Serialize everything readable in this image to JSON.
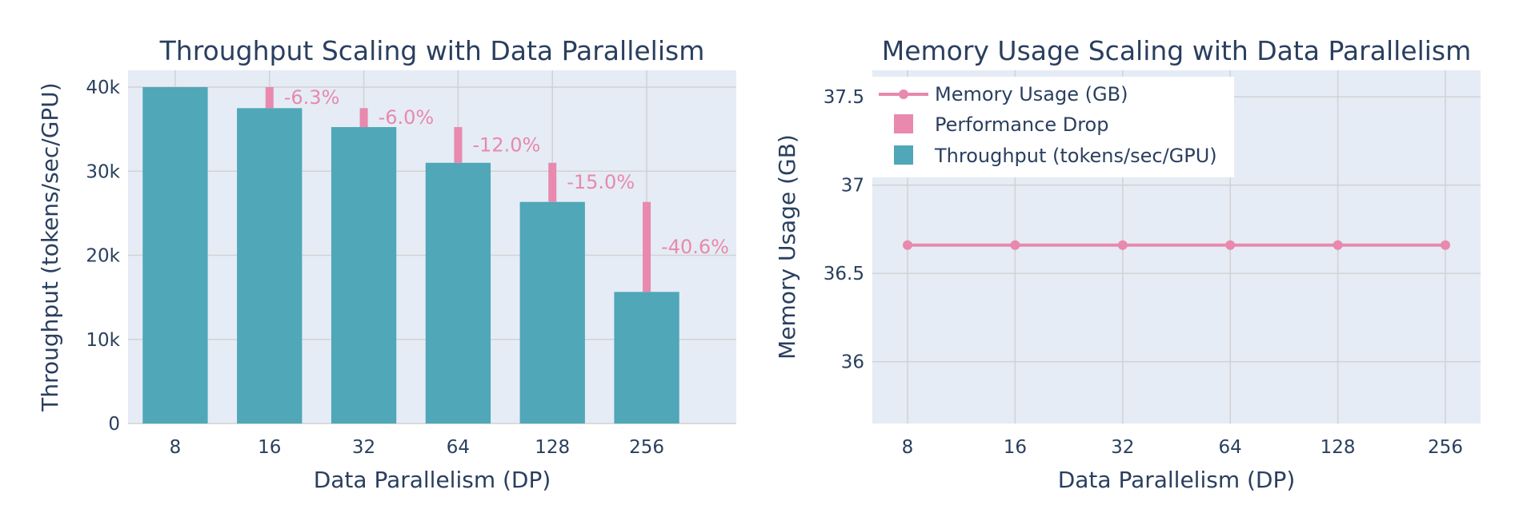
{
  "colors": {
    "throughput": "#4fa7b8",
    "drop": "#e889ad",
    "memory": "#e889ad",
    "plot_bg": "#e5ecf6",
    "grid": "#d2d2d2",
    "text": "#2a3f5f"
  },
  "chart_data": [
    {
      "type": "bar",
      "title": "Throughput Scaling with Data Parallelism",
      "xlabel": "Data Parallelism (DP)",
      "ylabel": "Throughput (tokens/sec/GPU)",
      "categories": [
        "8",
        "16",
        "32",
        "64",
        "128",
        "256"
      ],
      "ylim": [
        0,
        42000
      ],
      "yticks": [
        0,
        10000,
        20000,
        30000,
        40000
      ],
      "ytick_labels": [
        "0",
        "10k",
        "20k",
        "30k",
        "40k"
      ],
      "grid": true,
      "series": [
        {
          "name": "Throughput (tokens/sec/GPU)",
          "values": [
            40000,
            37500,
            35250,
            31000,
            26350,
            15650
          ]
        },
        {
          "name": "Performance Drop",
          "base": [
            37500,
            35250,
            31000,
            26350,
            15650
          ],
          "top": [
            40000,
            37500,
            35250,
            31000,
            26350
          ],
          "labels": [
            "-6.3%",
            "-6.0%",
            "-12.0%",
            "-15.0%",
            "-40.6%"
          ]
        }
      ]
    },
    {
      "type": "line",
      "title": "Memory Usage Scaling with Data Parallelism",
      "xlabel": "Data Parallelism (DP)",
      "ylabel": "Memory Usage (GB)",
      "categories": [
        "8",
        "16",
        "32",
        "64",
        "128",
        "256"
      ],
      "ylim": [
        35.65,
        37.65
      ],
      "yticks": [
        36,
        36.5,
        37,
        37.5
      ],
      "ytick_labels": [
        "36",
        "36.5",
        "37",
        "37.5"
      ],
      "grid": true,
      "series": [
        {
          "name": "Memory Usage (GB)",
          "values": [
            36.66,
            36.66,
            36.66,
            36.66,
            36.66,
            36.66
          ]
        }
      ],
      "legend": {
        "placement": "top-left",
        "entries": [
          "Memory Usage (GB)",
          "Performance Drop",
          "Throughput (tokens/sec/GPU)"
        ]
      }
    }
  ]
}
